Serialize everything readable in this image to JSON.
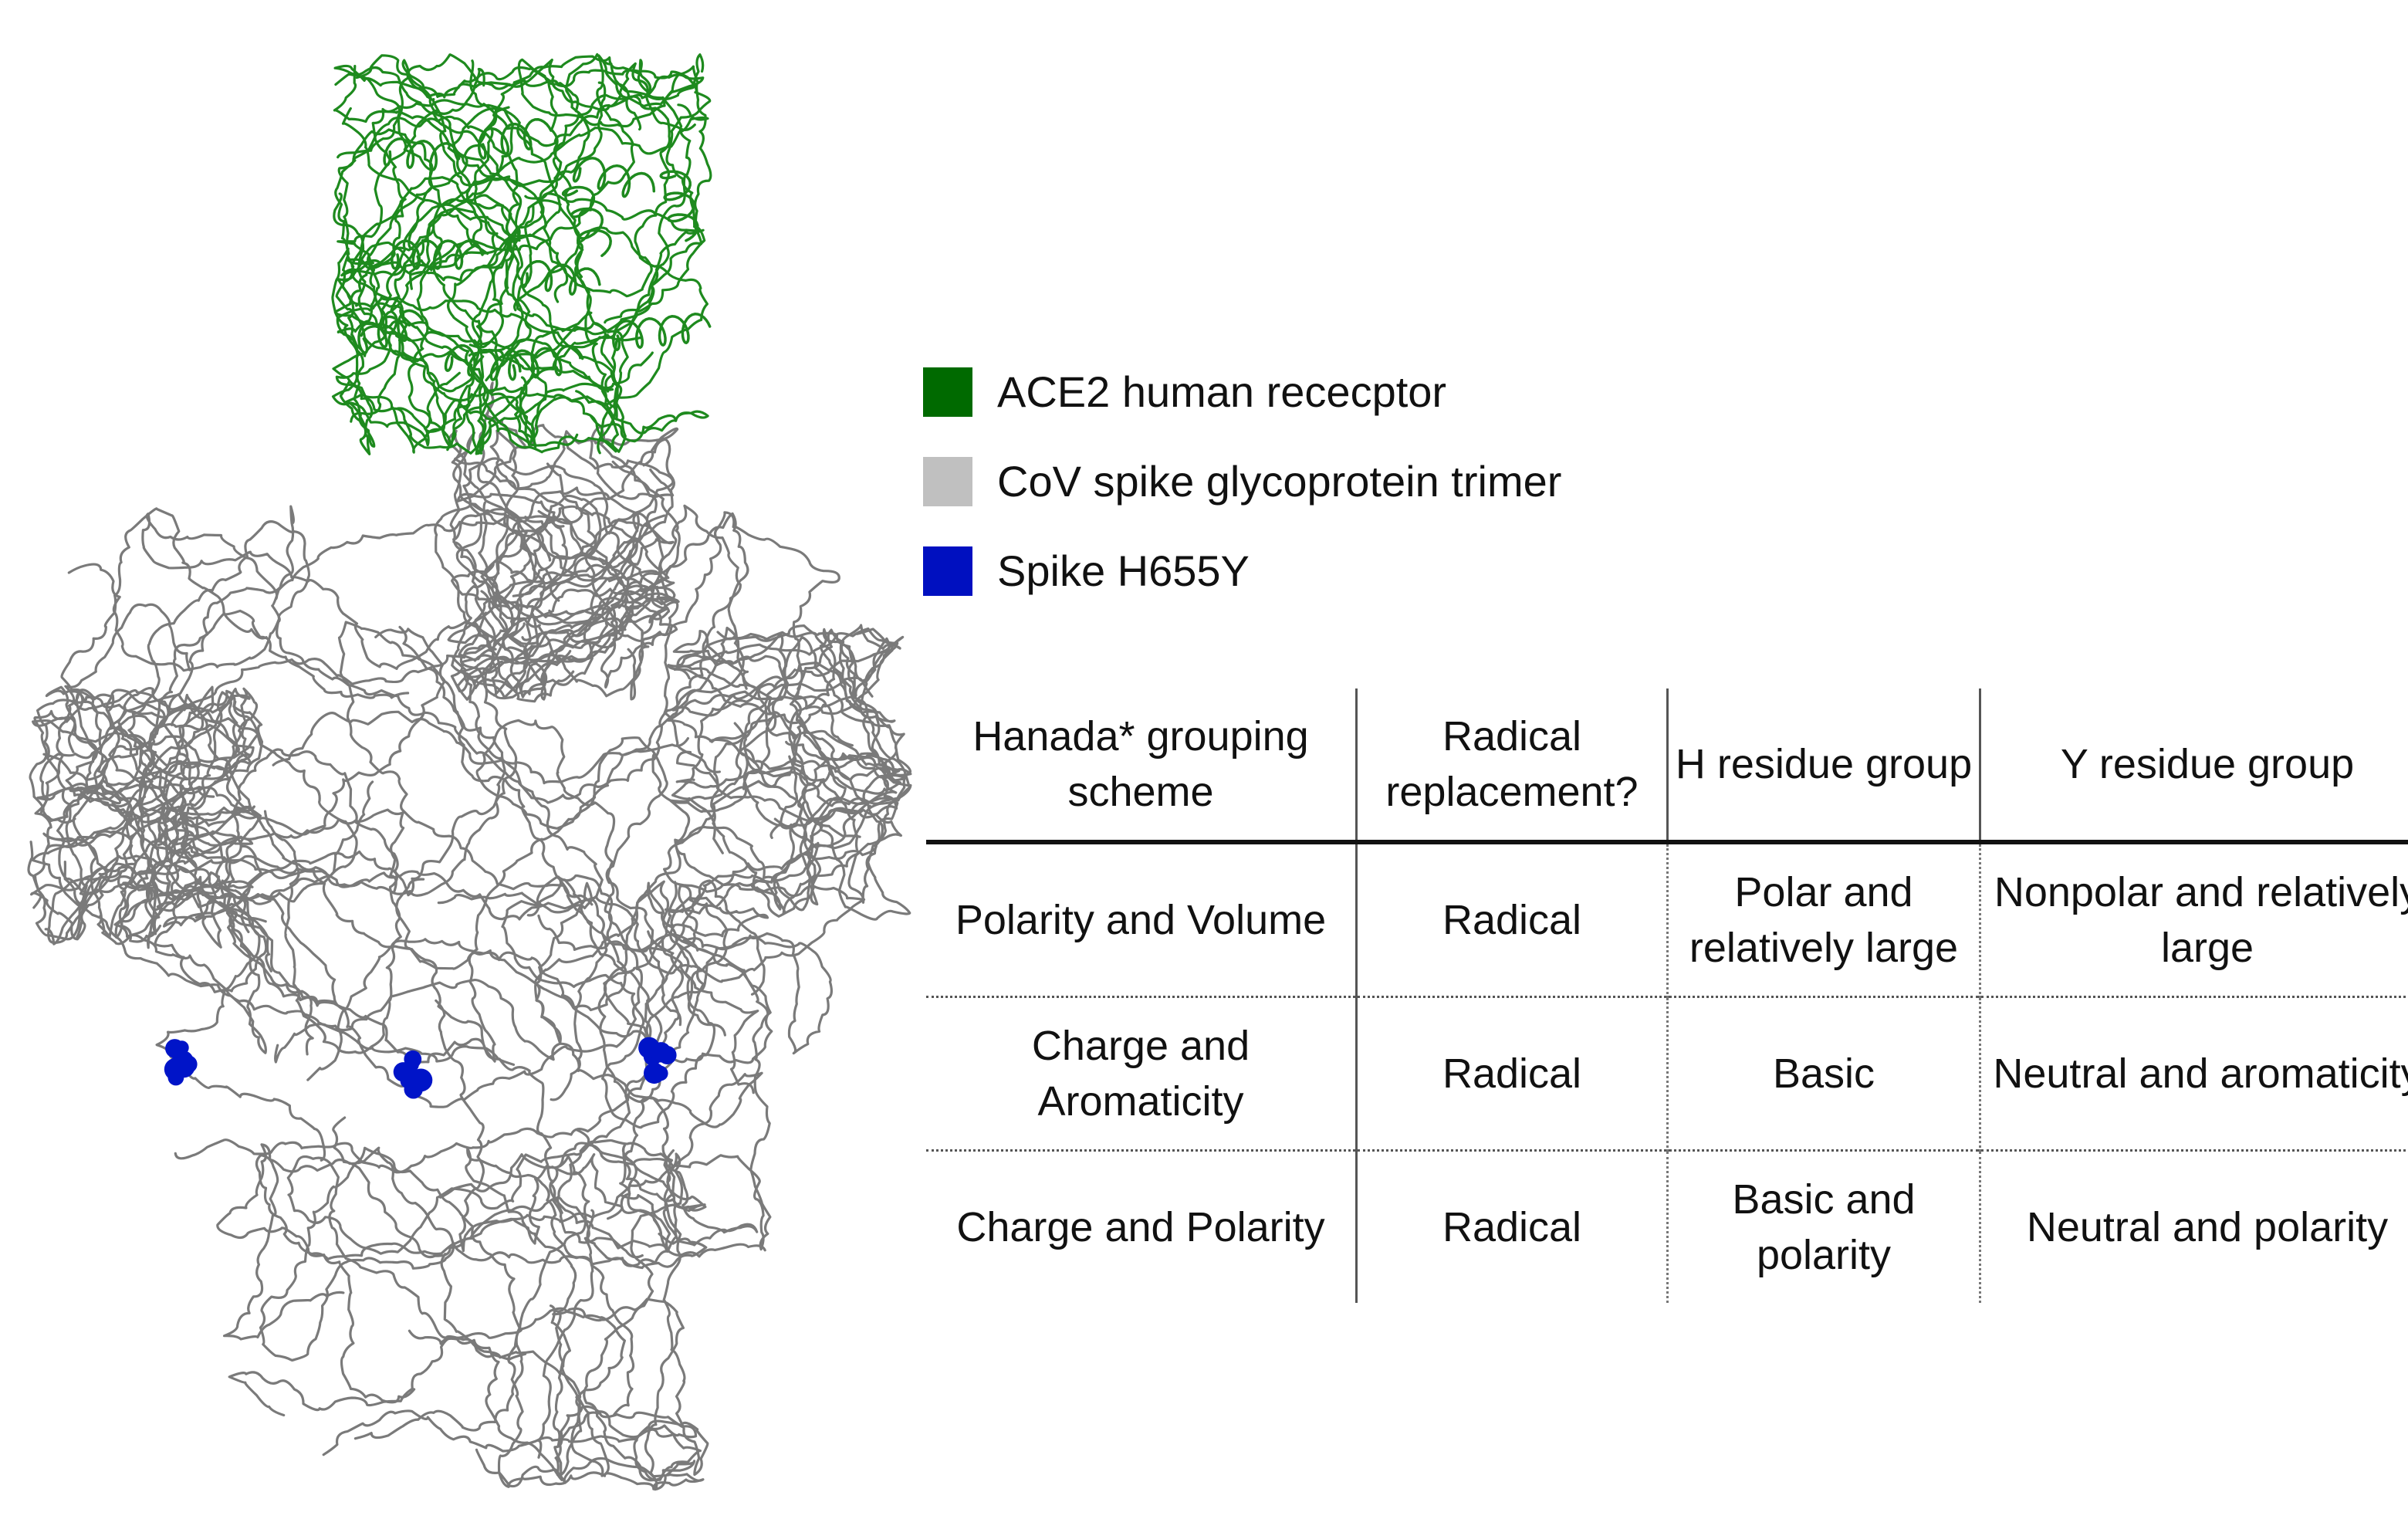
{
  "legend": [
    {
      "label": "ACE2 human rececptor",
      "color": "#006a00"
    },
    {
      "label": "CoV spike glycoprotein trimer",
      "color": "#c0c0c0"
    },
    {
      "label": "Spike H655Y",
      "color": "#0010c0"
    }
  ],
  "structure_colors": {
    "ace2": "#1e8a1e",
    "spike": "#7a7a7a",
    "mutation": "#0014c8"
  },
  "table": {
    "headers": [
      "Hanada* grouping scheme",
      "Radical replacement?",
      "H residue group",
      "Y residue group"
    ],
    "rows": [
      [
        "Polarity and Volume",
        "Radical",
        "Polar and relatively large",
        "Nonpolar and relatively large"
      ],
      [
        "Charge and Aromaticity",
        "Radical",
        "Basic",
        "Neutral and aromaticity"
      ],
      [
        "Charge and Polarity",
        "Radical",
        "Basic and polarity",
        "Neutral and polarity"
      ]
    ]
  }
}
